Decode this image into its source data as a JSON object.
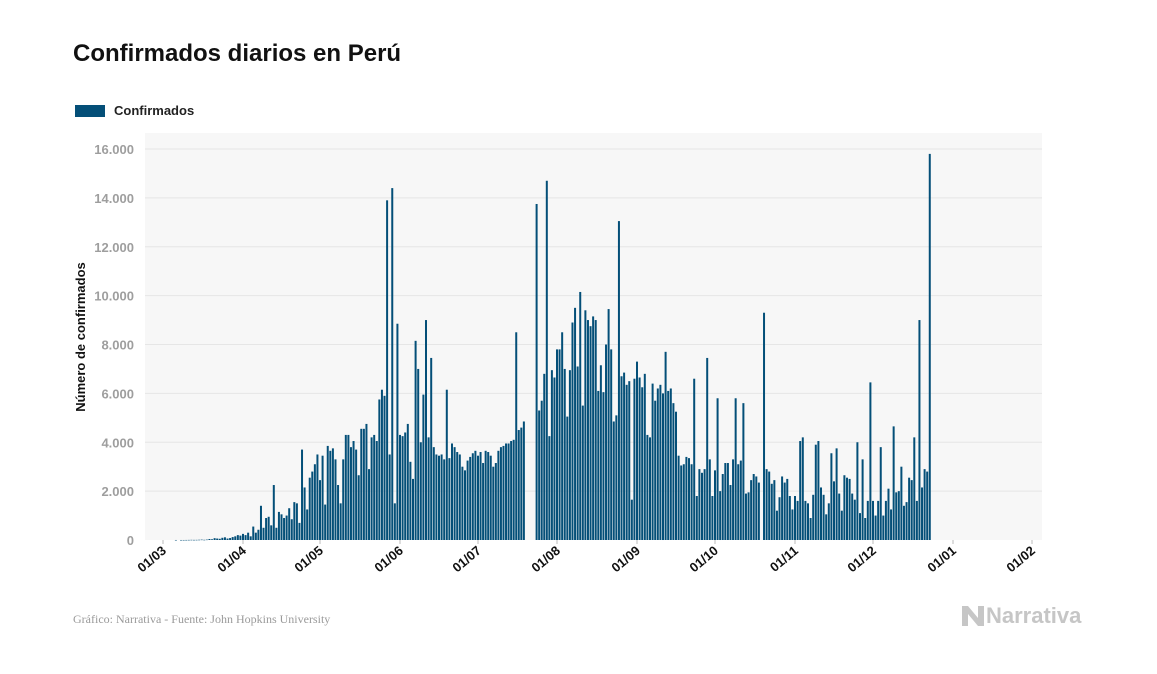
{
  "page": {
    "footer_text": "Gráfico: Narrativa - Fuente: John Hopkins University",
    "brand_name": "Narrativa"
  },
  "colors": {
    "bar": "#044f78",
    "grid": "#e6e6e6",
    "plot_bg": "#f7f7f7",
    "axis_text": "#9e9e9e"
  },
  "chart_data": {
    "type": "bar",
    "title": "Confirmados diarios en Perú",
    "xlabel": "",
    "ylabel": "Número de confirmados",
    "ylim": [
      0,
      16000
    ],
    "yticks": [
      0,
      2000,
      4000,
      6000,
      8000,
      10000,
      12000,
      14000,
      16000
    ],
    "ytick_labels": [
      "0",
      "2.000",
      "4.000",
      "6.000",
      "8.000",
      "10.000",
      "12.000",
      "14.000",
      "16.000"
    ],
    "xticks": [
      "01/03",
      "01/04",
      "01/05",
      "01/06",
      "01/07",
      "01/08",
      "01/09",
      "01/10",
      "01/11",
      "01/12",
      "01/01",
      "01/02"
    ],
    "grid": true,
    "legend": "top-left",
    "series": [
      {
        "name": "Confirmados",
        "start_date": "2020-03-06",
        "values": [
          1,
          0,
          1,
          1,
          2,
          4,
          7,
          5,
          6,
          10,
          15,
          8,
          16,
          40,
          30,
          75,
          60,
          50,
          90,
          110,
          60,
          80,
          120,
          150,
          200,
          180,
          250,
          200,
          300,
          150,
          550,
          300,
          420,
          1400,
          500,
          900,
          950,
          600,
          2250,
          500,
          1150,
          1050,
          900,
          1000,
          1300,
          850,
          1550,
          1500,
          700,
          3700,
          2150,
          1250,
          2550,
          2800,
          3100,
          3500,
          2450,
          3450,
          1450,
          3850,
          3650,
          3750,
          3300,
          2250,
          1500,
          3300,
          4300,
          4300,
          3800,
          4050,
          3700,
          2650,
          4550,
          4550,
          4750,
          2900,
          4200,
          4300,
          4050,
          5750,
          6150,
          5900,
          13900,
          3500,
          14400,
          1500,
          8850,
          4300,
          4250,
          4400,
          4750,
          3200,
          2500,
          8150,
          7000,
          4000,
          5950,
          9000,
          4200,
          7450,
          3800,
          3500,
          3450,
          3500,
          3300,
          6150,
          3350,
          3950,
          3800,
          3600,
          3500,
          3000,
          2850,
          3250,
          3400,
          3550,
          3650,
          3450,
          3600,
          3150,
          3650,
          3600,
          3450,
          3000,
          3150,
          3650,
          3800,
          3850,
          3950,
          3950,
          4050,
          4100,
          8500,
          4500,
          4600,
          4850,
          0,
          0,
          0,
          0,
          13750,
          5300,
          5700,
          6800,
          14700,
          4250,
          6950,
          6650,
          7800,
          7800,
          8500,
          7000,
          5050,
          6950,
          8900,
          9500,
          7100,
          10150,
          5500,
          9400,
          9000,
          8750,
          9150,
          9000,
          6100,
          7150,
          6050,
          8000,
          9450,
          7800,
          4850,
          5100,
          13050,
          6700,
          6850,
          6350,
          6500,
          1650,
          6600,
          7300,
          6650,
          6250,
          6800,
          4300,
          4200,
          6400,
          5700,
          6200,
          6350,
          6000,
          7700,
          6100,
          6200,
          5600,
          5250,
          3450,
          3050,
          3100,
          3400,
          3350,
          3100,
          6600,
          1800,
          2900,
          2750,
          2900,
          7450,
          3300,
          1800,
          2850,
          5800,
          2000,
          2700,
          3150,
          3150,
          2250,
          3300,
          5800,
          3100,
          3250,
          5600,
          1900,
          1950,
          2450,
          2700,
          2600,
          2350,
          0,
          9300,
          2900,
          2800,
          2300,
          2450,
          1200,
          1750,
          2600,
          2350,
          2500,
          1800,
          1250,
          1800,
          1600,
          4050,
          4200,
          1600,
          1500,
          900,
          1850,
          3900,
          4050,
          2150,
          1850,
          1050,
          1500,
          3550,
          2400,
          3750,
          1900,
          1200,
          2650,
          2550,
          2500,
          1900,
          1650,
          4000,
          1100,
          3300,
          900,
          1600,
          6450,
          1600,
          1000,
          1600,
          3800,
          1000,
          1600,
          2100,
          1250,
          4650,
          1950,
          2000,
          3000,
          1400,
          1550,
          2550,
          2450,
          4200,
          1600,
          9000,
          2150,
          2900,
          2800,
          15800
        ]
      }
    ]
  }
}
